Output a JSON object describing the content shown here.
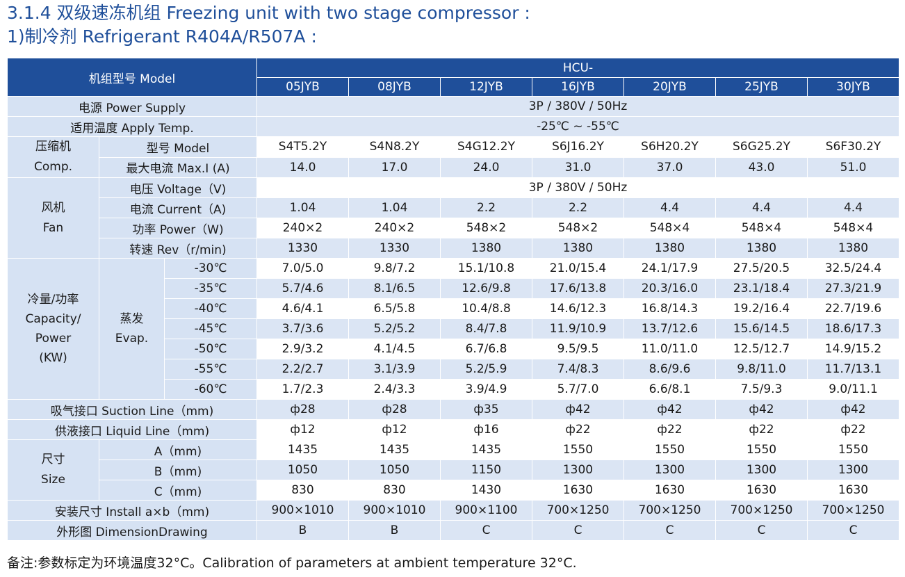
{
  "title_line1": "3.1.4 双级速冻机组 Freezing unit with two stage compressor :",
  "title_line2": "1)制冷剂 Refrigerant  R404A/R507A :",
  "header": {
    "model_label": "机组型号 Model",
    "series": "HCU-",
    "models": [
      "05JYB",
      "08JYB",
      "12JYB",
      "16JYB",
      "20JYB",
      "25JYB",
      "30JYB"
    ]
  },
  "power_supply": {
    "label": "电源 Power Supply",
    "value": "3P / 380V / 50Hz"
  },
  "apply_temp": {
    "label": "适用温度 Apply Temp.",
    "value": "-25℃ ~ -55℃"
  },
  "comp": {
    "group_label_cn": "压缩机",
    "group_label_en": "Comp.",
    "model_label": "型号 Model",
    "models": [
      "S4T5.2Y",
      "S4N8.2Y",
      "S4G12.2Y",
      "S6J16.2Y",
      "S6H20.2Y",
      "S6G25.2Y",
      "S6F30.2Y"
    ],
    "maxi_label": "最大电流 Max.I (A)",
    "maxi": [
      "14.0",
      "17.0",
      "24.0",
      "31.0",
      "37.0",
      "43.0",
      "51.0"
    ]
  },
  "fan": {
    "group_label_cn": "风机",
    "group_label_en": "Fan",
    "voltage_label": "电压 Voltage（V)",
    "voltage_value": "3P / 380V / 50Hz",
    "current_label": "电流 Current（A)",
    "current": [
      "1.04",
      "1.04",
      "2.2",
      "2.2",
      "4.4",
      "4.4",
      "4.4"
    ],
    "power_label": "功率 Power（W)",
    "power": [
      "240×2",
      "240×2",
      "548×2",
      "548×2",
      "548×4",
      "548×4",
      "548×4"
    ],
    "rev_label": "转速 Rev（r/min)",
    "rev": [
      "1330",
      "1330",
      "1380",
      "1380",
      "1380",
      "1380",
      "1380"
    ]
  },
  "capacity": {
    "label_l1": "冷量/功率",
    "label_l2": "Capacity/",
    "label_l3": "Power",
    "label_l4": "(KW)",
    "evap_cn": "蒸发",
    "evap_en": "Evap.",
    "rows": [
      {
        "temp": "-30℃",
        "values": [
          "7.0/5.0",
          "9.8/7.2",
          "15.1/10.8",
          "21.0/15.4",
          "24.1/17.9",
          "27.5/20.5",
          "32.5/24.4"
        ]
      },
      {
        "temp": "-35℃",
        "values": [
          "5.7/4.6",
          "8.1/6.5",
          "12.6/9.8",
          "17.6/13.8",
          "20.3/16.0",
          "23.1/18.4",
          "27.3/21.9"
        ]
      },
      {
        "temp": "-40℃",
        "values": [
          "4.6/4.1",
          "6.5/5.8",
          "10.4/8.8",
          "14.6/12.3",
          "16.8/14.3",
          "19.2/16.4",
          "22.7/19.6"
        ]
      },
      {
        "temp": "-45℃",
        "values": [
          "3.7/3.6",
          "5.2/5.2",
          "8.4/7.8",
          "11.9/10.9",
          "13.7/12.6",
          "15.6/14.5",
          "18.6/17.3"
        ]
      },
      {
        "temp": "-50℃",
        "values": [
          "2.9/3.2",
          "4.1/4.5",
          "6.7/6.8",
          "9.5/9.5",
          "11.0/11.0",
          "12.5/12.7",
          "14.9/15.2"
        ]
      },
      {
        "temp": "-55℃",
        "values": [
          "2.2/2.7",
          "3.1/3.9",
          "5.2/5.9",
          "7.4/8.3",
          "8.6/9.6",
          "9.8/11.0",
          "11.7/13.1"
        ]
      },
      {
        "temp": "-60℃",
        "values": [
          "1.7/2.3",
          "2.4/3.3",
          "3.9/4.9",
          "5.7/7.0",
          "6.6/8.1",
          "7.5/9.3",
          "9.0/11.1"
        ]
      }
    ]
  },
  "suction": {
    "label": "吸气接口 Suction Line（mm)",
    "values": [
      "ф28",
      "ф28",
      "ф35",
      "ф42",
      "ф42",
      "ф42",
      "ф42"
    ]
  },
  "liquid": {
    "label": "供液接口 Liquid Line（mm)",
    "values": [
      "ф12",
      "ф12",
      "ф16",
      "ф22",
      "ф22",
      "ф22",
      "ф22"
    ]
  },
  "size": {
    "label_cn": "尺寸",
    "label_en": "Size",
    "a_label": "A（mm)",
    "a": [
      "1435",
      "1435",
      "1435",
      "1550",
      "1550",
      "1550",
      "1550"
    ],
    "b_label": "B（mm)",
    "b": [
      "1050",
      "1050",
      "1150",
      "1300",
      "1300",
      "1300",
      "1300"
    ],
    "c_label": "C（mm)",
    "c": [
      "830",
      "830",
      "1430",
      "1630",
      "1630",
      "1630",
      "1630"
    ]
  },
  "install": {
    "label": "安装尺寸 Install a×b（mm)",
    "values": [
      "900×1010",
      "900×1010",
      "900×1100",
      "700×1250",
      "700×1250",
      "700×1250",
      "700×1250"
    ]
  },
  "drawing": {
    "label": "外形图 DimensionDrawing",
    "values": [
      "B",
      "B",
      "C",
      "C",
      "C",
      "C",
      "C"
    ]
  },
  "note": "备注:参数标定为环境温度32°C。Calibration of parameters at ambient temperature 32°C.",
  "colors": {
    "header_blue": "#1f4f9a",
    "label_bg": "#d6e2f3",
    "stripe": "#dbe5f4"
  }
}
